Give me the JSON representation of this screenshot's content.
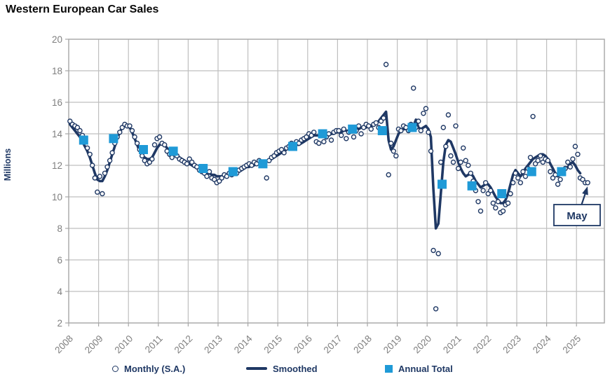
{
  "title": "Western European Car Sales",
  "legend": {
    "items": [
      {
        "label": "Monthly (S.A.)",
        "marker": "open-circle"
      },
      {
        "label": "Smoothed",
        "marker": "line"
      },
      {
        "label": "Annual Total",
        "marker": "filled-square"
      }
    ]
  },
  "annotation": {
    "label": "May"
  },
  "colors": {
    "navy": "#1F3864",
    "azure": "#1F9AD7",
    "gridline": "#BFBFBF",
    "border": "#A6A6A6",
    "axis_text": "#7F7F7F",
    "title_text": "#0A0A0A"
  },
  "chart_data": {
    "type": "combo",
    "title": "Western European Car Sales",
    "xlabel": "",
    "ylabel": "Millions",
    "ylim": [
      2,
      20
    ],
    "ytick_step": 2,
    "yticks": [
      2,
      4,
      6,
      8,
      10,
      12,
      14,
      16,
      18,
      20
    ],
    "x_years": [
      2008,
      2009,
      2010,
      2011,
      2012,
      2013,
      2014,
      2015,
      2016,
      2017,
      2018,
      2019,
      2020,
      2021,
      2022,
      2023,
      2024,
      2025
    ],
    "grid": true,
    "legend_position": "bottom",
    "series": [
      {
        "name": "Monthly (S.A.)",
        "type": "scatter",
        "marker": "open-circle",
        "color": "#1F3864",
        "start": "2008-01",
        "values": [
          14.8,
          14.6,
          14.5,
          14.4,
          14.2,
          13.9,
          13.5,
          13.1,
          12.7,
          12.0,
          11.2,
          10.3,
          11.3,
          10.2,
          11.5,
          11.9,
          12.3,
          12.8,
          13.4,
          13.8,
          14.1,
          14.4,
          14.6,
          14.5,
          14.5,
          14.2,
          13.8,
          13.4,
          13.0,
          12.6,
          12.3,
          12.1,
          12.2,
          12.4,
          13.3,
          13.7,
          13.8,
          13.4,
          13.3,
          12.9,
          12.7,
          12.5,
          12.8,
          12.6,
          12.4,
          12.3,
          12.2,
          12.1,
          12.4,
          12.2,
          12.0,
          11.9,
          11.7,
          11.6,
          11.5,
          11.3,
          11.6,
          11.2,
          11.1,
          10.9,
          11.0,
          11.2,
          11.4,
          11.3,
          11.5,
          11.4,
          11.6,
          11.5,
          11.7,
          11.8,
          11.9,
          12.0,
          12.1,
          12.0,
          12.2,
          12.1,
          12.3,
          12.2,
          12.0,
          11.2,
          12.3,
          12.5,
          12.6,
          12.8,
          12.9,
          13.0,
          12.8,
          13.1,
          13.2,
          13.4,
          13.3,
          13.5,
          13.4,
          13.6,
          13.7,
          13.8,
          14.0,
          13.9,
          14.1,
          13.5,
          13.4,
          13.9,
          13.5,
          13.8,
          14.0,
          13.6,
          14.1,
          14.2,
          14.2,
          13.9,
          14.3,
          13.7,
          14.1,
          14.4,
          13.8,
          14.2,
          14.5,
          14.0,
          14.4,
          14.6,
          14.5,
          14.3,
          14.6,
          14.7,
          14.4,
          14.8,
          15.0,
          18.4,
          11.4,
          13.4,
          12.9,
          12.6,
          14.3,
          14.2,
          14.5,
          14.4,
          14.2,
          14.6,
          16.9,
          14.4,
          14.8,
          14.2,
          15.3,
          15.6,
          14.1,
          12.9,
          6.6,
          2.9,
          6.4,
          12.2,
          14.4,
          13.2,
          15.2,
          12.6,
          12.2,
          14.5,
          11.8,
          12.2,
          13.1,
          12.3,
          12.0,
          11.5,
          11.0,
          10.4,
          9.7,
          9.1,
          10.4,
          10.9,
          10.2,
          10.4,
          9.6,
          9.3,
          9.7,
          9.0,
          9.1,
          9.5,
          9.6,
          10.2,
          10.9,
          11.5,
          11.2,
          10.9,
          11.6,
          11.3,
          11.8,
          12.5,
          15.1,
          12.1,
          12.3,
          12.6,
          12.2,
          12.4,
          12.3,
          11.6,
          11.2,
          11.4,
          10.8,
          11.1,
          11.5,
          11.8,
          12.2,
          11.9,
          12.4,
          13.2,
          12.7,
          11.2,
          11.1,
          10.9,
          10.9
        ]
      },
      {
        "name": "Smoothed",
        "type": "line",
        "color": "#1F3864",
        "start": "2008-01",
        "values": [
          14.6,
          14.4,
          14.2,
          14.0,
          13.8,
          13.5,
          13.2,
          12.9,
          12.5,
          12.0,
          11.5,
          11.1,
          11.0,
          11.0,
          11.3,
          11.7,
          12.2,
          12.7,
          13.2,
          13.7,
          14.1,
          14.4,
          14.5,
          14.5,
          14.4,
          14.1,
          13.7,
          13.3,
          12.9,
          12.6,
          12.5,
          12.4,
          12.4,
          12.5,
          12.8,
          13.1,
          13.3,
          13.4,
          13.3,
          13.1,
          12.9,
          12.8,
          12.7,
          12.6,
          12.5,
          12.4,
          12.3,
          12.2,
          12.1,
          12.0,
          11.9,
          11.9,
          11.8,
          11.7,
          11.6,
          11.5,
          11.5,
          11.4,
          11.4,
          11.3,
          11.3,
          11.3,
          11.4,
          11.4,
          11.5,
          11.5,
          11.5,
          11.6,
          11.6,
          11.7,
          11.8,
          11.9,
          11.9,
          12.0,
          12.0,
          12.1,
          12.1,
          12.2,
          12.2,
          12.3,
          12.3,
          12.4,
          12.5,
          12.6,
          12.7,
          12.8,
          12.9,
          13.0,
          13.1,
          13.2,
          13.2,
          13.3,
          13.3,
          13.4,
          13.5,
          13.6,
          13.7,
          13.8,
          13.9,
          13.9,
          13.9,
          13.8,
          13.8,
          13.8,
          13.9,
          14.0,
          14.0,
          14.1,
          14.1,
          14.1,
          14.2,
          14.2,
          14.2,
          14.3,
          14.3,
          14.3,
          14.3,
          14.4,
          14.4,
          14.4,
          14.5,
          14.5,
          14.6,
          14.7,
          14.8,
          15.0,
          15.2,
          15.4,
          13.6,
          13.0,
          13.2,
          13.6,
          14.0,
          14.2,
          14.3,
          14.3,
          14.3,
          14.3,
          14.5,
          14.9,
          14.4,
          14.3,
          14.4,
          14.5,
          14.3,
          13.8,
          10.5,
          8.0,
          8.3,
          10.2,
          12.2,
          13.3,
          13.6,
          13.5,
          13.1,
          12.7,
          12.2,
          11.8,
          11.5,
          11.3,
          11.4,
          11.5,
          11.3,
          11.0,
          10.8,
          10.6,
          10.7,
          10.8,
          10.8,
          10.6,
          10.3,
          10.0,
          9.8,
          9.6,
          9.6,
          9.8,
          10.2,
          10.8,
          11.4,
          11.7,
          11.5,
          11.3,
          11.5,
          11.8,
          12.0,
          12.2,
          12.4,
          12.5,
          12.6,
          12.7,
          12.7,
          12.6,
          12.4,
          12.1,
          11.8,
          11.5,
          11.3,
          11.4,
          11.5,
          11.7,
          11.9,
          12.1,
          12.2,
          12.0,
          11.7,
          11.5
        ]
      },
      {
        "name": "Annual Total",
        "type": "scatter",
        "marker": "filled-square",
        "color": "#1F9AD7",
        "years": [
          2008,
          2009,
          2010,
          2011,
          2012,
          2013,
          2014,
          2015,
          2016,
          2017,
          2018,
          2019,
          2020,
          2021,
          2022,
          2023,
          2024
        ],
        "values": [
          13.6,
          13.7,
          13.0,
          12.9,
          11.8,
          11.6,
          12.1,
          13.2,
          14.0,
          14.3,
          14.2,
          14.4,
          10.8,
          10.7,
          10.2,
          11.6,
          11.6
        ]
      }
    ],
    "annotation": {
      "label": "May",
      "target": "2025-05",
      "target_value": 10.9
    }
  }
}
